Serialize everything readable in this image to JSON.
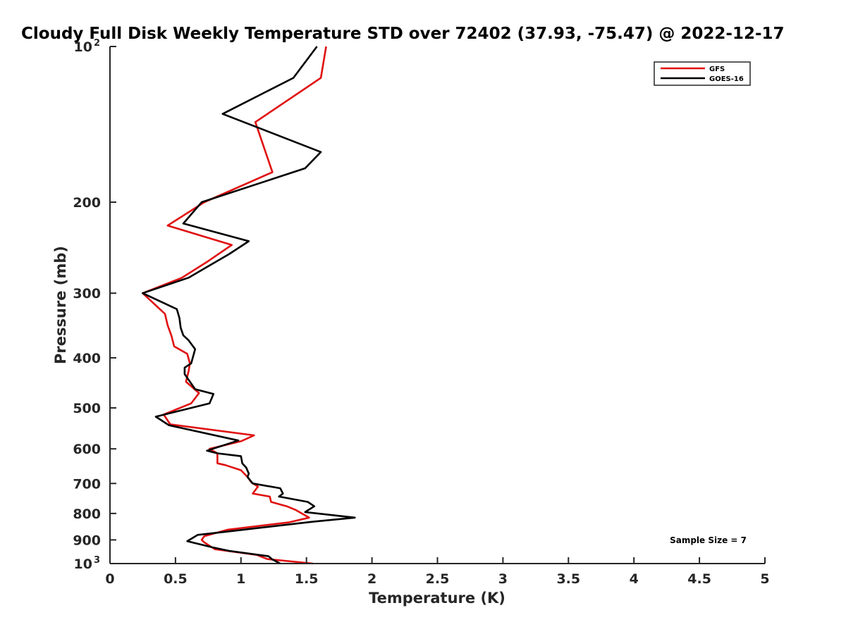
{
  "chart_data": {
    "type": "line",
    "title": "Cloudy Full Disk Weekly Temperature STD over 72402 (37.93, -75.47) @ 2022-12-17",
    "xlabel": "Temperature (K)",
    "ylabel": "Pressure (mb)",
    "xlim": [
      0,
      5
    ],
    "ylim": [
      100,
      1000
    ],
    "y_scale": "log",
    "y_reversed": true,
    "x_ticks": [
      0,
      0.5,
      1,
      1.5,
      2,
      2.5,
      3,
      3.5,
      4,
      4.5,
      5
    ],
    "x_tick_labels": [
      "0",
      "0.5",
      "1",
      "1.5",
      "2",
      "2.5",
      "3",
      "3.5",
      "4",
      "4.5",
      "5"
    ],
    "y_ticks": [
      {
        "value": 100,
        "label": "10",
        "sup": "2"
      },
      {
        "value": 200,
        "label": "200"
      },
      {
        "value": 300,
        "label": "300"
      },
      {
        "value": 400,
        "label": "400"
      },
      {
        "value": 500,
        "label": "500"
      },
      {
        "value": 600,
        "label": "600"
      },
      {
        "value": 700,
        "label": "700"
      },
      {
        "value": 800,
        "label": "800"
      },
      {
        "value": 900,
        "label": "900"
      },
      {
        "value": 1000,
        "label": "10",
        "sup": "3"
      }
    ],
    "grid": false,
    "legend_position": "top-right",
    "annotation": "Sample Size = 7",
    "series": [
      {
        "name": "GFS",
        "color": "#e01010",
        "points": [
          [
            1.65,
            100
          ],
          [
            1.61,
            115
          ],
          [
            1.11,
            140
          ],
          [
            1.24,
            175
          ],
          [
            0.72,
            200
          ],
          [
            0.44,
            222
          ],
          [
            0.93,
            242
          ],
          [
            0.75,
            260
          ],
          [
            0.55,
            280
          ],
          [
            0.25,
            300
          ],
          [
            0.42,
            329
          ],
          [
            0.44,
            346
          ],
          [
            0.47,
            363
          ],
          [
            0.49,
            380
          ],
          [
            0.59,
            393
          ],
          [
            0.61,
            410
          ],
          [
            0.6,
            425
          ],
          [
            0.58,
            445
          ],
          [
            0.68,
            468
          ],
          [
            0.62,
            490
          ],
          [
            0.41,
            515
          ],
          [
            0.46,
            538
          ],
          [
            1.1,
            565
          ],
          [
            1.0,
            580
          ],
          [
            0.76,
            600
          ],
          [
            0.82,
            612
          ],
          [
            0.82,
            640
          ],
          [
            0.88,
            645
          ],
          [
            1.0,
            660
          ],
          [
            1.05,
            680
          ],
          [
            1.08,
            697
          ],
          [
            1.13,
            710
          ],
          [
            1.12,
            715
          ],
          [
            1.09,
            732
          ],
          [
            1.22,
            742
          ],
          [
            1.23,
            760
          ],
          [
            1.35,
            775
          ],
          [
            1.42,
            788
          ],
          [
            1.52,
            815
          ],
          [
            1.37,
            832
          ],
          [
            0.9,
            860
          ],
          [
            0.72,
            885
          ],
          [
            0.7,
            900
          ],
          [
            0.72,
            910
          ],
          [
            0.8,
            938
          ],
          [
            1.12,
            962
          ],
          [
            1.2,
            980
          ],
          [
            1.55,
            1000
          ]
        ]
      },
      {
        "name": "GOES-16",
        "color": "#000000",
        "points": [
          [
            1.58,
            100
          ],
          [
            1.4,
            115
          ],
          [
            0.86,
            135
          ],
          [
            1.61,
            160
          ],
          [
            1.49,
            172
          ],
          [
            0.7,
            200
          ],
          [
            0.56,
            220
          ],
          [
            1.06,
            238
          ],
          [
            0.91,
            252
          ],
          [
            0.6,
            280
          ],
          [
            0.25,
            300
          ],
          [
            0.51,
            322
          ],
          [
            0.53,
            335
          ],
          [
            0.54,
            350
          ],
          [
            0.56,
            362
          ],
          [
            0.6,
            370
          ],
          [
            0.65,
            385
          ],
          [
            0.62,
            410
          ],
          [
            0.57,
            418
          ],
          [
            0.57,
            430
          ],
          [
            0.65,
            460
          ],
          [
            0.79,
            470
          ],
          [
            0.76,
            490
          ],
          [
            0.35,
            520
          ],
          [
            0.45,
            540
          ],
          [
            0.98,
            578
          ],
          [
            0.74,
            605
          ],
          [
            0.82,
            612
          ],
          [
            1.0,
            620
          ],
          [
            1.01,
            640
          ],
          [
            1.04,
            652
          ],
          [
            1.06,
            670
          ],
          [
            1.05,
            680
          ],
          [
            1.09,
            700
          ],
          [
            1.3,
            715
          ],
          [
            1.32,
            732
          ],
          [
            1.29,
            742
          ],
          [
            1.51,
            760
          ],
          [
            1.56,
            775
          ],
          [
            1.49,
            795
          ],
          [
            1.87,
            815
          ],
          [
            1.55,
            830
          ],
          [
            0.88,
            868
          ],
          [
            0.67,
            880
          ],
          [
            0.59,
            905
          ],
          [
            0.78,
            930
          ],
          [
            0.91,
            945
          ],
          [
            1.21,
            968
          ],
          [
            1.24,
            982
          ],
          [
            1.3,
            1000
          ]
        ]
      }
    ]
  }
}
